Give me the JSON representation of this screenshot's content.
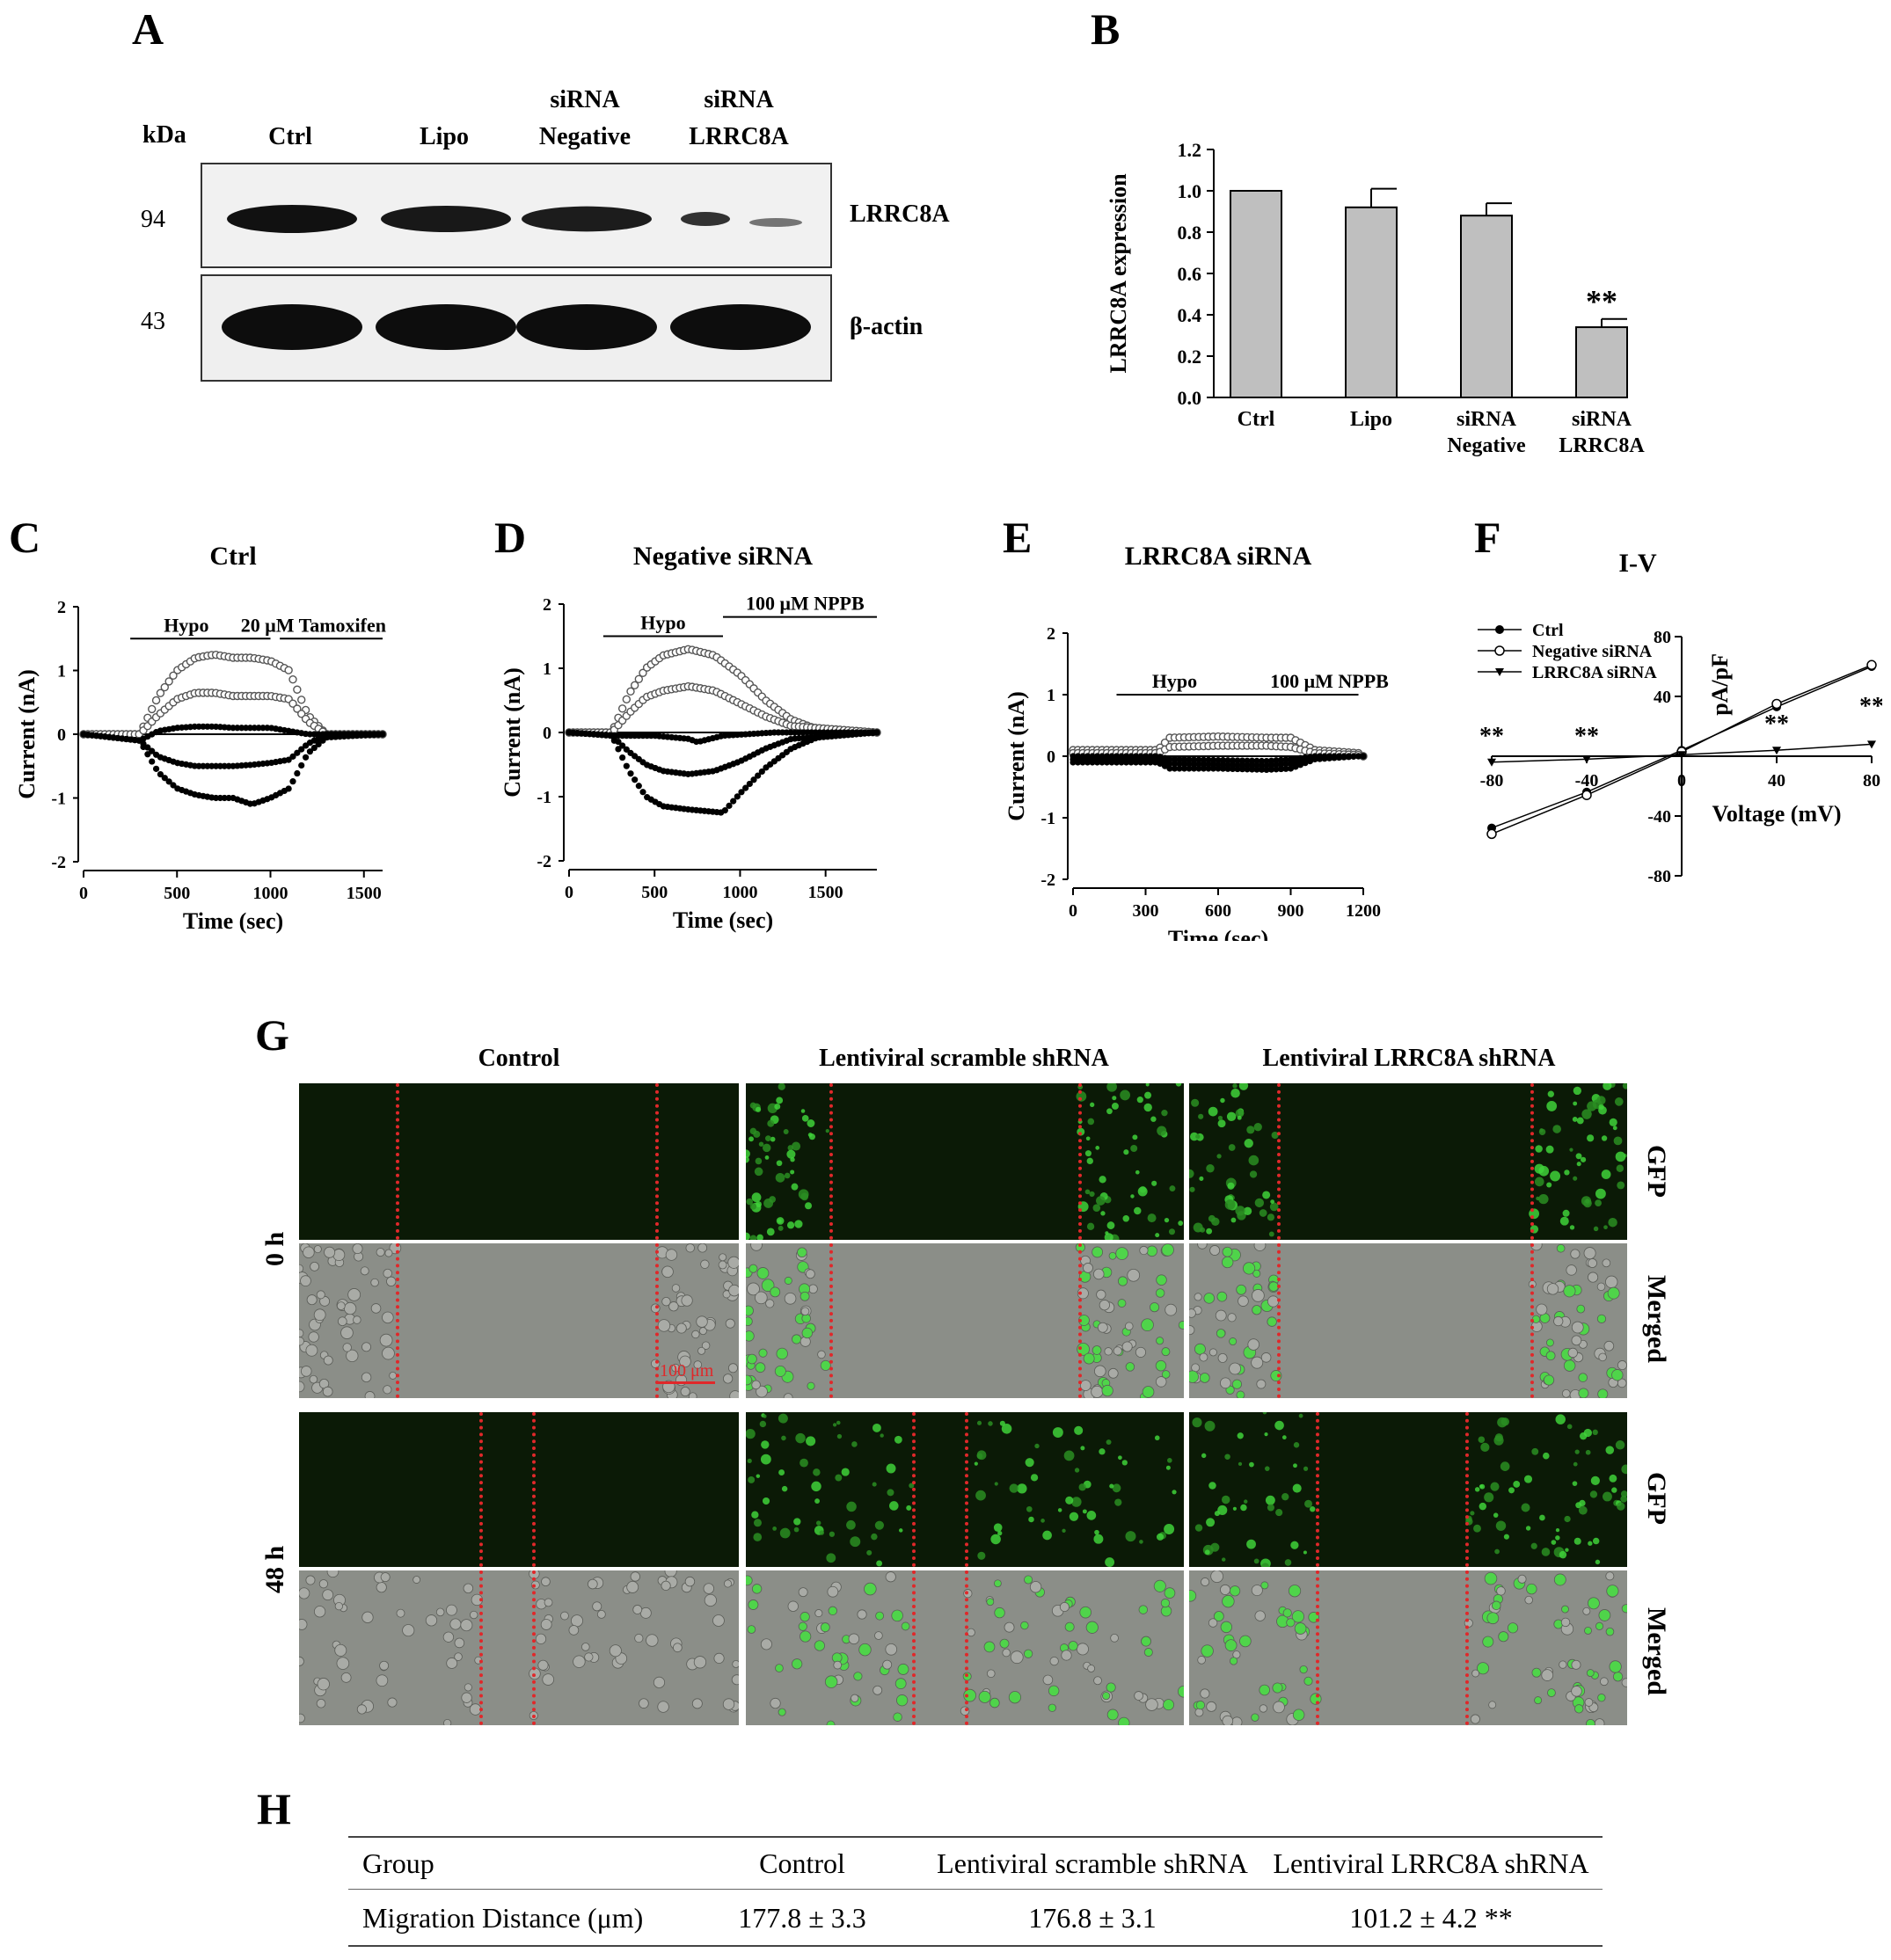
{
  "panels": {
    "A": {
      "label": "A",
      "kda_label": "kDa",
      "lanes": [
        "Ctrl",
        "Lipo",
        "siRNA\nNegative",
        "siRNA\nLRRC8A"
      ],
      "lane_line1": [
        "",
        "",
        "siRNA",
        "siRNA"
      ],
      "lane_line2": [
        "Ctrl",
        "Lipo",
        "Negative",
        "LRRC8A"
      ],
      "rows": [
        {
          "kda": "94",
          "protein": "LRRC8A",
          "band_intensity": [
            1.0,
            0.93,
            0.88,
            0.34
          ]
        },
        {
          "kda": "43",
          "protein": "β-actin",
          "band_intensity": [
            1.0,
            1.0,
            1.0,
            1.0
          ]
        }
      ]
    },
    "B": {
      "label": "B"
    },
    "C": {
      "label": "C"
    },
    "D": {
      "label": "D"
    },
    "E": {
      "label": "E"
    },
    "F": {
      "label": "F"
    },
    "G": {
      "label": "G",
      "columns": [
        "Control",
        "Lentiviral scramble shRNA",
        "Lentiviral LRRC8A shRNA"
      ],
      "timepoints": [
        "0 h",
        "48 h"
      ],
      "channels": [
        "GFP",
        "Merged"
      ],
      "scale_bar": "100 μm"
    },
    "H": {
      "label": "H",
      "header": [
        "Group",
        "Control",
        "Lentiviral scramble shRNA",
        "Lentiviral LRRC8A shRNA"
      ],
      "row": [
        "Migration Distance (μm)",
        "177.8 ± 3.3",
        "176.8 ± 3.1",
        "101.2 ± 4.2 **"
      ]
    }
  },
  "chart_data": [
    {
      "panel": "B",
      "type": "bar",
      "categories": [
        "Ctrl",
        "Lipo",
        "siRNA Negative",
        "siRNA LRRC8A"
      ],
      "category_line1": [
        "Ctrl",
        "Lipo",
        "siRNA",
        "siRNA"
      ],
      "category_line2": [
        "",
        "",
        "Negative",
        "LRRC8A"
      ],
      "values": [
        1.0,
        0.92,
        0.88,
        0.34
      ],
      "errors": [
        0.0,
        0.09,
        0.06,
        0.04
      ],
      "significance": [
        "",
        "",
        "",
        "**"
      ],
      "ylabel": "LRRC8A expression",
      "ylim": [
        0,
        1.2
      ],
      "yticks": [
        "0.0",
        "0.2",
        "0.4",
        "0.6",
        "0.8",
        "1.0",
        "1.2"
      ],
      "color": "#bfbfbf"
    },
    {
      "panel": "C",
      "type": "scatter",
      "title": "Ctrl",
      "xlabel": "Time (sec)",
      "ylabel": "Current (nA)",
      "xlim": [
        0,
        1600
      ],
      "ylim": [
        -2,
        2
      ],
      "xticks": [
        "0",
        "500",
        "1000",
        "1500"
      ],
      "yticks": [
        "-2",
        "-1",
        "0",
        "1",
        "2"
      ],
      "annotations": [
        {
          "text": "Hypo",
          "x_start": 250,
          "x_end": 1000
        },
        {
          "text": "20 μM Tamoxifen",
          "x_start": 1050,
          "x_end": 1600
        }
      ],
      "traces": [
        {
          "style": "open",
          "points": [
            [
              0,
              0
            ],
            [
              300,
              0
            ],
            [
              400,
              0.6
            ],
            [
              500,
              1.0
            ],
            [
              600,
              1.2
            ],
            [
              700,
              1.25
            ],
            [
              800,
              1.2
            ],
            [
              900,
              1.2
            ],
            [
              1000,
              1.15
            ],
            [
              1100,
              1.0
            ],
            [
              1200,
              0.3
            ],
            [
              1300,
              0
            ],
            [
              1600,
              0
            ]
          ]
        },
        {
          "style": "open",
          "points": [
            [
              0,
              0
            ],
            [
              300,
              0
            ],
            [
              400,
              0.3
            ],
            [
              500,
              0.55
            ],
            [
              600,
              0.65
            ],
            [
              700,
              0.65
            ],
            [
              800,
              0.6
            ],
            [
              900,
              0.6
            ],
            [
              1000,
              0.6
            ],
            [
              1100,
              0.55
            ],
            [
              1200,
              0.2
            ],
            [
              1300,
              0
            ],
            [
              1600,
              0
            ]
          ]
        },
        {
          "style": "filled",
          "points": [
            [
              0,
              0
            ],
            [
              300,
              -0.1
            ],
            [
              400,
              0.05
            ],
            [
              500,
              0.1
            ],
            [
              600,
              0.12
            ],
            [
              700,
              0.12
            ],
            [
              800,
              0.1
            ],
            [
              900,
              0.1
            ],
            [
              1000,
              0.1
            ],
            [
              1100,
              0.05
            ],
            [
              1200,
              0
            ],
            [
              1600,
              0
            ]
          ]
        },
        {
          "style": "filled",
          "points": [
            [
              0,
              0
            ],
            [
              300,
              -0.1
            ],
            [
              400,
              -0.35
            ],
            [
              500,
              -0.45
            ],
            [
              600,
              -0.5
            ],
            [
              700,
              -0.5
            ],
            [
              800,
              -0.5
            ],
            [
              900,
              -0.48
            ],
            [
              1000,
              -0.45
            ],
            [
              1100,
              -0.4
            ],
            [
              1200,
              -0.15
            ],
            [
              1300,
              0
            ],
            [
              1600,
              0
            ]
          ]
        },
        {
          "style": "filled",
          "points": [
            [
              0,
              0
            ],
            [
              300,
              -0.1
            ],
            [
              400,
              -0.6
            ],
            [
              500,
              -0.85
            ],
            [
              600,
              -0.95
            ],
            [
              700,
              -1.0
            ],
            [
              800,
              -1.0
            ],
            [
              900,
              -1.1
            ],
            [
              1000,
              -1.0
            ],
            [
              1100,
              -0.85
            ],
            [
              1200,
              -0.3
            ],
            [
              1300,
              -0.05
            ],
            [
              1600,
              0
            ]
          ]
        }
      ]
    },
    {
      "panel": "D",
      "type": "scatter",
      "title": "Negative siRNA",
      "xlabel": "Time (sec)",
      "ylabel": "Current (nA)",
      "xlim": [
        0,
        1800
      ],
      "ylim": [
        -2,
        2
      ],
      "xticks": [
        "0",
        "500",
        "1000",
        "1500"
      ],
      "yticks": [
        "-2",
        "-1",
        "0",
        "1",
        "2"
      ],
      "annotations": [
        {
          "text": "Hypo",
          "x_start": 200,
          "x_end": 900
        },
        {
          "text": "100 μM NPPB",
          "x_start": 900,
          "x_end": 1800
        }
      ],
      "traces": [
        {
          "style": "open",
          "points": [
            [
              0,
              0
            ],
            [
              250,
              0
            ],
            [
              350,
              0.6
            ],
            [
              450,
              1.0
            ],
            [
              550,
              1.2
            ],
            [
              700,
              1.3
            ],
            [
              850,
              1.2
            ],
            [
              1000,
              0.9
            ],
            [
              1150,
              0.5
            ],
            [
              1300,
              0.2
            ],
            [
              1450,
              0.05
            ],
            [
              1800,
              0
            ]
          ]
        },
        {
          "style": "open",
          "points": [
            [
              0,
              0
            ],
            [
              250,
              0
            ],
            [
              350,
              0.3
            ],
            [
              450,
              0.55
            ],
            [
              550,
              0.65
            ],
            [
              700,
              0.72
            ],
            [
              850,
              0.65
            ],
            [
              1000,
              0.45
            ],
            [
              1150,
              0.25
            ],
            [
              1300,
              0.1
            ],
            [
              1800,
              0
            ]
          ]
        },
        {
          "style": "filled",
          "points": [
            [
              0,
              0
            ],
            [
              300,
              -0.05
            ],
            [
              500,
              -0.05
            ],
            [
              700,
              -0.1
            ],
            [
              750,
              -0.15
            ],
            [
              900,
              -0.05
            ],
            [
              1200,
              0
            ],
            [
              1800,
              0
            ]
          ]
        },
        {
          "style": "filled",
          "points": [
            [
              0,
              0
            ],
            [
              250,
              -0.05
            ],
            [
              350,
              -0.3
            ],
            [
              450,
              -0.5
            ],
            [
              550,
              -0.6
            ],
            [
              700,
              -0.65
            ],
            [
              850,
              -0.6
            ],
            [
              1000,
              -0.45
            ],
            [
              1150,
              -0.25
            ],
            [
              1300,
              -0.1
            ],
            [
              1800,
              0
            ]
          ]
        },
        {
          "style": "filled",
          "points": [
            [
              0,
              0
            ],
            [
              250,
              -0.05
            ],
            [
              350,
              -0.6
            ],
            [
              450,
              -1.0
            ],
            [
              550,
              -1.15
            ],
            [
              700,
              -1.2
            ],
            [
              900,
              -1.25
            ],
            [
              1000,
              -0.95
            ],
            [
              1150,
              -0.55
            ],
            [
              1300,
              -0.25
            ],
            [
              1450,
              -0.08
            ],
            [
              1800,
              0
            ]
          ]
        }
      ]
    },
    {
      "panel": "E",
      "type": "scatter",
      "title": "LRRC8A siRNA",
      "xlabel": "Time (sec)",
      "ylabel": "Current (nA)",
      "xlim": [
        0,
        1200
      ],
      "ylim": [
        -2,
        2
      ],
      "xticks": [
        "0",
        "300",
        "600",
        "900",
        "1200"
      ],
      "yticks": [
        "-2",
        "-1",
        "0",
        "1",
        "2"
      ],
      "annotations": [
        {
          "text": "Hypo",
          "x_start": 180,
          "x_end": 900
        },
        {
          "text": "100 μM NPPB",
          "x_start": 900,
          "x_end": 1180
        }
      ],
      "traces": [
        {
          "style": "open",
          "points": [
            [
              0,
              0.1
            ],
            [
              350,
              0.1
            ],
            [
              400,
              0.3
            ],
            [
              600,
              0.32
            ],
            [
              800,
              0.3
            ],
            [
              900,
              0.3
            ],
            [
              1000,
              0.1
            ],
            [
              1180,
              0.05
            ]
          ]
        },
        {
          "style": "open",
          "points": [
            [
              0,
              0.05
            ],
            [
              350,
              0.05
            ],
            [
              400,
              0.15
            ],
            [
              600,
              0.17
            ],
            [
              800,
              0.17
            ],
            [
              900,
              0.15
            ],
            [
              1000,
              0.05
            ],
            [
              1180,
              0.02
            ]
          ]
        },
        {
          "style": "filled",
          "points": [
            [
              0,
              0
            ],
            [
              350,
              0
            ],
            [
              400,
              -0.05
            ],
            [
              800,
              -0.08
            ],
            [
              900,
              -0.05
            ],
            [
              1000,
              0
            ],
            [
              1180,
              0
            ]
          ]
        },
        {
          "style": "filled",
          "points": [
            [
              0,
              -0.05
            ],
            [
              350,
              -0.05
            ],
            [
              400,
              -0.12
            ],
            [
              800,
              -0.15
            ],
            [
              900,
              -0.12
            ],
            [
              1000,
              -0.03
            ],
            [
              1180,
              0
            ]
          ]
        },
        {
          "style": "filled",
          "points": [
            [
              0,
              -0.1
            ],
            [
              350,
              -0.1
            ],
            [
              400,
              -0.2
            ],
            [
              600,
              -0.2
            ],
            [
              800,
              -0.22
            ],
            [
              900,
              -0.2
            ],
            [
              1000,
              -0.05
            ],
            [
              1180,
              0
            ]
          ]
        }
      ]
    },
    {
      "panel": "F",
      "type": "line",
      "title": "I-V",
      "xlabel": "Voltage (mV)",
      "ylabel": "pA/pF",
      "xlim": [
        -80,
        80
      ],
      "ylim": [
        -80,
        80
      ],
      "xticks": [
        "-80",
        "-40",
        "0",
        "40",
        "80"
      ],
      "yticks": [
        "-80",
        "-40",
        "40",
        "80"
      ],
      "legend": "top-left",
      "series": [
        {
          "name": "Ctrl",
          "marker": "filled-circle",
          "x": [
            -80,
            -40,
            0,
            40,
            80
          ],
          "y": [
            -48,
            -24,
            4,
            33,
            60
          ]
        },
        {
          "name": "Negative siRNA",
          "marker": "open-circle",
          "x": [
            -80,
            -40,
            0,
            40,
            80
          ],
          "y": [
            -52,
            -26,
            3,
            35,
            61
          ]
        },
        {
          "name": "LRRC8A siRNA",
          "marker": "filled-triangle",
          "x": [
            -80,
            -40,
            0,
            40,
            80
          ],
          "y": [
            -4,
            -2,
            1,
            4,
            8
          ]
        }
      ],
      "significance": [
        {
          "x": -80,
          "text": "**"
        },
        {
          "x": -40,
          "text": "**"
        },
        {
          "x": 40,
          "text": "**"
        },
        {
          "x": 80,
          "text": "**"
        }
      ]
    }
  ]
}
